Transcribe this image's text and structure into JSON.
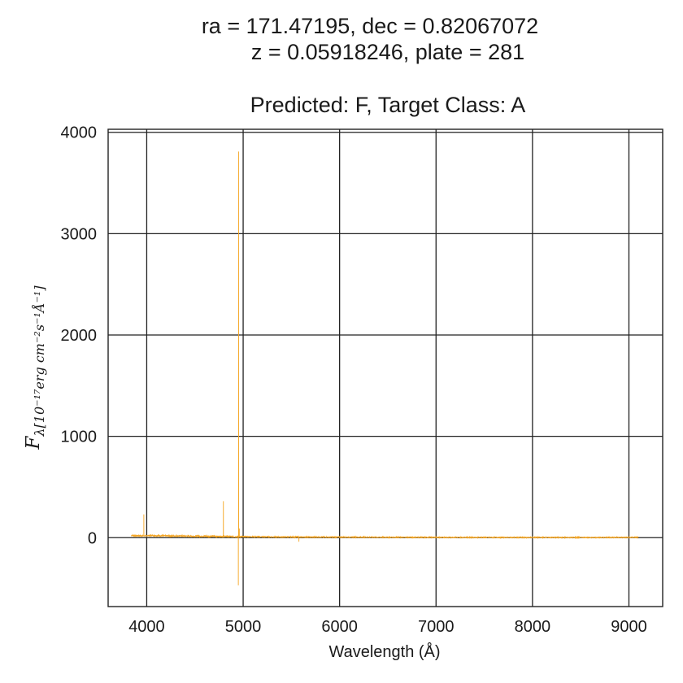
{
  "chart_data": {
    "type": "line",
    "title_lines": [
      "ra = 171.47195, dec = 0.82067072",
      "z = 0.05918246, plate = 281"
    ],
    "subtitle": "Predicted: F, Target Class: A",
    "xlabel": "Wavelength (Å)",
    "ylabel_main": "F",
    "ylabel_sub": "λ[10⁻¹⁷erg cm⁻²s⁻¹Å⁻¹]",
    "xlim": [
      3600,
      9350
    ],
    "ylim": [
      -680,
      4030
    ],
    "xticks": [
      4000,
      5000,
      6000,
      7000,
      8000,
      9000
    ],
    "yticks": [
      0,
      1000,
      2000,
      3000,
      4000
    ],
    "grid": true,
    "series": [
      {
        "name": "flux",
        "color": "#f5a623",
        "baseline": [
          [
            3840,
            22
          ],
          [
            3900,
            20
          ],
          [
            3960,
            18
          ],
          [
            4050,
            22
          ],
          [
            4200,
            18
          ],
          [
            4400,
            16
          ],
          [
            4600,
            14
          ],
          [
            4780,
            12
          ],
          [
            4940,
            10
          ],
          [
            5100,
            9
          ],
          [
            5400,
            7
          ],
          [
            5800,
            6
          ],
          [
            6200,
            5
          ],
          [
            6600,
            4
          ],
          [
            7000,
            3
          ],
          [
            7400,
            3
          ],
          [
            7800,
            2
          ],
          [
            8200,
            2
          ],
          [
            8600,
            2
          ],
          [
            9000,
            3
          ],
          [
            9100,
            4
          ]
        ],
        "features": [
          {
            "x": 3970,
            "y": 230
          },
          {
            "x": 4795,
            "y": 360
          },
          {
            "x": 4953,
            "y": 3810
          },
          {
            "x": 4950,
            "y": -470
          },
          {
            "x": 4960,
            "y": 90
          },
          {
            "x": 5578,
            "y": -40
          }
        ]
      }
    ]
  }
}
